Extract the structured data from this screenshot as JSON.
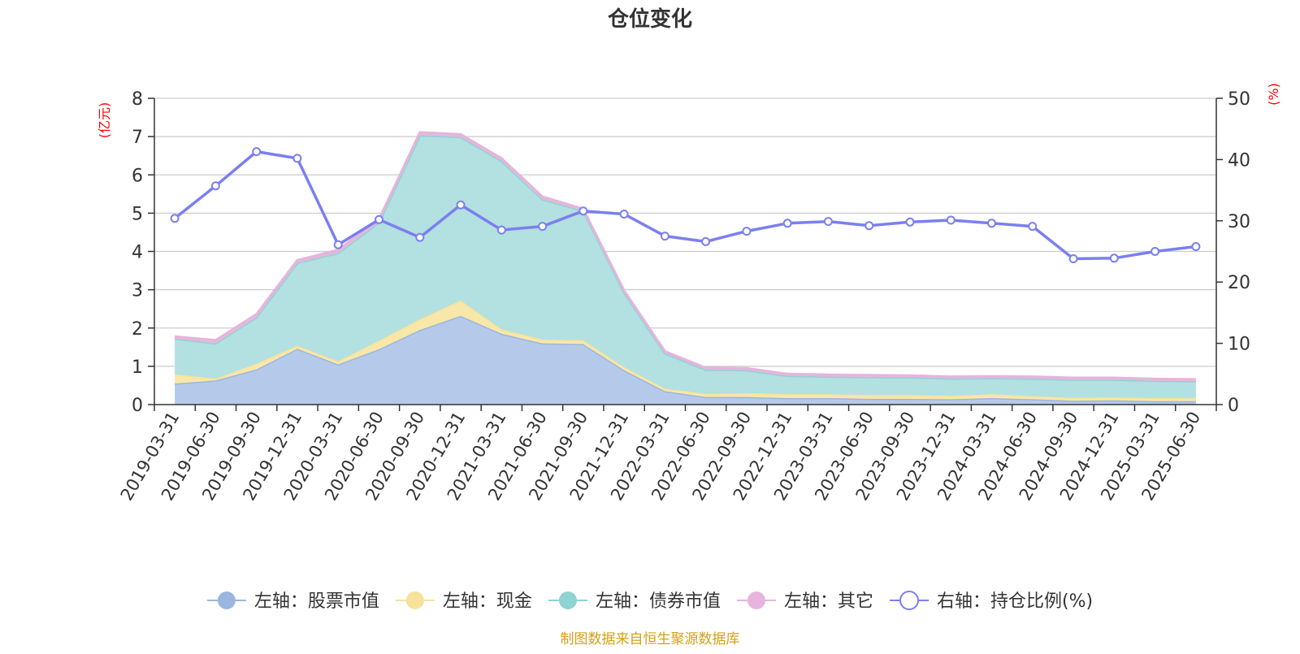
{
  "chart_data": {
    "type": "area",
    "title": "仓位变化",
    "left_axis_unit": "(亿元)",
    "right_axis_unit": "(%)",
    "ylim_left": [
      0,
      8
    ],
    "yticks_left": [
      0,
      1,
      2,
      3,
      4,
      5,
      6,
      7,
      8
    ],
    "ylim_right": [
      0,
      50
    ],
    "yticks_right": [
      0,
      10,
      20,
      30,
      40,
      50
    ],
    "grid": true,
    "legend_position": "bottom",
    "stacked": true,
    "categories": [
      "2019-03-31",
      "2019-06-30",
      "2019-09-30",
      "2019-12-31",
      "2020-03-31",
      "2020-06-30",
      "2020-09-30",
      "2020-12-31",
      "2021-03-31",
      "2021-06-30",
      "2021-09-30",
      "2021-12-31",
      "2022-03-31",
      "2022-06-30",
      "2022-09-30",
      "2022-12-31",
      "2023-03-31",
      "2023-06-30",
      "2023-09-30",
      "2023-12-31",
      "2024-03-31",
      "2024-06-30",
      "2024-09-30",
      "2024-12-31",
      "2025-03-31",
      "2025-06-30"
    ],
    "series": [
      {
        "name": "左轴：股票市值",
        "axis": "left",
        "color": "#9bb6e0",
        "fill": "#b5c9ea",
        "values": [
          0.55,
          0.63,
          0.92,
          1.46,
          1.05,
          1.45,
          1.95,
          2.32,
          1.85,
          1.6,
          1.58,
          0.9,
          0.35,
          0.2,
          0.2,
          0.17,
          0.17,
          0.15,
          0.15,
          0.14,
          0.17,
          0.14,
          0.1,
          0.11,
          0.09,
          0.09
        ]
      },
      {
        "name": "左轴：现金",
        "axis": "left",
        "color": "#f7e29c",
        "fill": "#f8e7a8",
        "values": [
          0.24,
          0.05,
          0.15,
          0.08,
          0.08,
          0.22,
          0.28,
          0.4,
          0.12,
          0.1,
          0.1,
          0.08,
          0.07,
          0.08,
          0.1,
          0.1,
          0.1,
          0.1,
          0.1,
          0.09,
          0.1,
          0.08,
          0.08,
          0.08,
          0.08,
          0.08
        ]
      },
      {
        "name": "左轴：债券市值",
        "axis": "left",
        "color": "#8fd3d3",
        "fill": "#b3e0e0",
        "values": [
          0.93,
          0.92,
          1.21,
          2.16,
          2.83,
          3.09,
          4.8,
          4.27,
          4.39,
          3.66,
          3.38,
          1.95,
          0.92,
          0.63,
          0.6,
          0.48,
          0.46,
          0.47,
          0.46,
          0.45,
          0.42,
          0.46,
          0.47,
          0.46,
          0.45,
          0.44
        ]
      },
      {
        "name": "左轴：其它",
        "axis": "left",
        "color": "#e6b4dc",
        "fill": "#e6b8dc",
        "values": [
          0.06,
          0.08,
          0.08,
          0.07,
          0.08,
          0.08,
          0.08,
          0.07,
          0.07,
          0.07,
          0.05,
          0.05,
          0.05,
          0.05,
          0.05,
          0.05,
          0.05,
          0.05,
          0.05,
          0.05,
          0.05,
          0.05,
          0.05,
          0.05,
          0.05,
          0.05
        ]
      },
      {
        "name": "右轴：持仓比例(%)",
        "axis": "right",
        "color": "#7b7ff0",
        "values": [
          30.4,
          35.7,
          41.3,
          40.2,
          26.1,
          30.2,
          27.3,
          32.6,
          28.5,
          29.1,
          31.6,
          31.1,
          27.5,
          26.6,
          28.3,
          29.6,
          29.9,
          29.2,
          29.8,
          30.1,
          29.6,
          29.1,
          23.8,
          23.9,
          25.0,
          25.8
        ]
      }
    ]
  },
  "footer": {
    "source": "制图数据来自恒生聚源数据库"
  }
}
